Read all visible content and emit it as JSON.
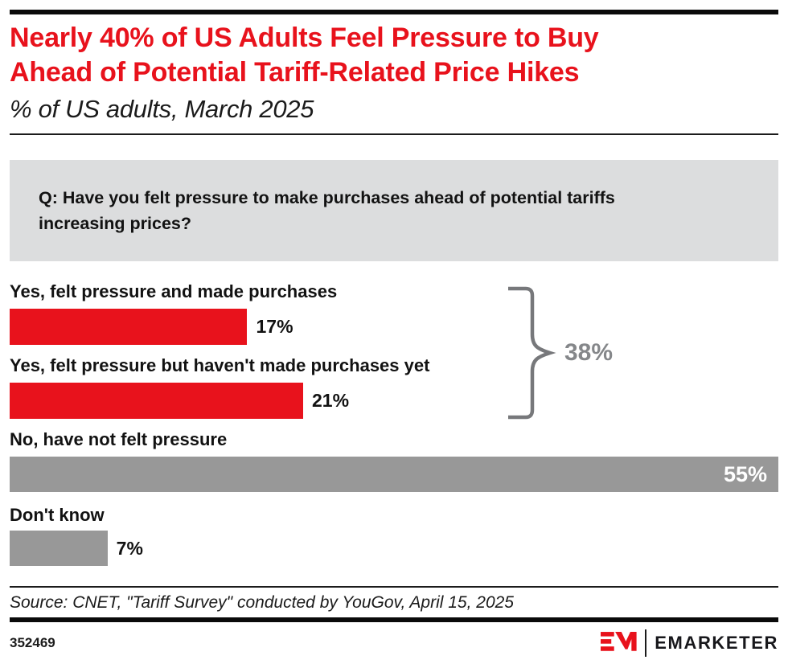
{
  "header": {
    "title_lines": [
      "Nearly 40% of US Adults Feel Pressure to Buy",
      "Ahead of Potential Tariff-Related Price Hikes"
    ],
    "subtitle": "% of US adults, March 2025"
  },
  "question": {
    "lines": [
      "Q: Have you felt pressure to make purchases ahead of potential tariffs",
      "increasing prices?"
    ]
  },
  "chart_data": {
    "type": "bar",
    "orientation": "horizontal",
    "title": "Nearly 40% of US Adults Feel Pressure to Buy Ahead of Potential Tariff-Related Price Hikes",
    "subtitle": "% of US adults, March 2025",
    "unit": "%",
    "scale_max": 55,
    "grid": false,
    "legend": false,
    "categories": [
      "Yes, felt pressure and made purchases",
      "Yes, felt pressure but haven't made purchases yet",
      "No, have not felt pressure",
      "Don't know"
    ],
    "values": [
      17,
      21,
      55,
      7
    ],
    "bars": [
      {
        "label": "Yes, felt pressure and made purchases",
        "value": 17,
        "display": "17%",
        "color": "#e8121c",
        "value_position": "outside"
      },
      {
        "label": "Yes, felt pressure but haven't made purchases yet",
        "value": 21,
        "display": "21%",
        "color": "#e8121c",
        "value_position": "outside"
      },
      {
        "label": "No, have not felt pressure",
        "value": 55,
        "display": "55%",
        "color": "#989898",
        "value_position": "inside"
      },
      {
        "label": "Don't know",
        "value": 7,
        "display": "7%",
        "color": "#989898",
        "value_position": "outside"
      }
    ],
    "annotation": {
      "text": "38%",
      "value": 38,
      "covers": [
        "Yes, felt pressure and made purchases",
        "Yes, felt pressure but haven't made purchases yet"
      ]
    }
  },
  "footer": {
    "source": "Source: CNET, \"Tariff Survey\" conducted by YouGov, April 15, 2025",
    "chart_id": "352469",
    "brand": "EMARKETER"
  },
  "colors": {
    "accent_red": "#e8121c",
    "bar_gray": "#989898",
    "question_box_bg": "#dcddde",
    "bracket_gray": "#77787b",
    "annotation_gray": "#85878a",
    "text_black": "#121212"
  }
}
